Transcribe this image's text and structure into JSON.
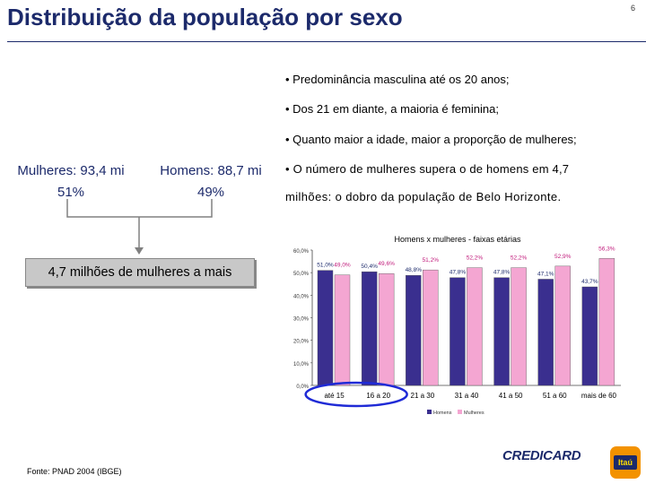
{
  "title": "Distribuição da população por sexo",
  "page_number": "6",
  "bullets": [
    "• Predominância masculina até os 20 anos;",
    "• Dos 21 em diante, a maioria é feminina;",
    "• Quanto maior a idade, maior a proporção de mulheres;",
    "• O número de mulheres supera o de homens em 4,7",
    "milhões: o dobro da população de Belo Horizonte."
  ],
  "women": {
    "line1": "Mulheres: 93,4 mi",
    "line2": "51%"
  },
  "men": {
    "line1": "Homens: 88,7 mi",
    "line2": "49%"
  },
  "result_box": "4,7 milhões de mulheres a mais",
  "source": "Fonte: PNAD 2004 (IBGE)",
  "logos": {
    "credicard": "CREDICARD",
    "itau": "Itaú"
  },
  "colors": {
    "title": "#1c2a6b",
    "men_bar": "#3a2f8f",
    "women_bar": "#f4a6d2",
    "women_label": "#c0187a",
    "highlight": "#1f2ad6"
  },
  "chart_data": {
    "type": "bar",
    "title": "Homens x mulheres - faixas etárias",
    "categories": [
      "até 15",
      "16 a 20",
      "21 a 30",
      "31 a 40",
      "41 a 50",
      "51 a 60",
      "mais de 60"
    ],
    "series": [
      {
        "name": "Homens",
        "values": [
          51.0,
          50.4,
          48.8,
          47.8,
          47.8,
          47.1,
          43.7
        ],
        "labels": [
          "51,0%",
          "50,4%",
          "48,8%",
          "47,8%",
          "47,8%",
          "47,1%",
          "43,7%"
        ]
      },
      {
        "name": "Mulheres",
        "values": [
          49.0,
          49.6,
          51.2,
          52.2,
          52.2,
          52.9,
          56.3
        ],
        "labels": [
          "49,0%",
          "49,6%",
          "51,2%",
          "52,2%",
          "52,2%",
          "52,9%",
          "56,3%"
        ]
      }
    ],
    "y_ticks": [
      "0,0%",
      "10,0%",
      "20,0%",
      "30,0%",
      "40,0%",
      "50,0%",
      "60,0%"
    ],
    "ylim": [
      0,
      60
    ],
    "grid": false,
    "legend": "bottom",
    "highlighted_categories": [
      "até 15",
      "16 a 20"
    ]
  }
}
